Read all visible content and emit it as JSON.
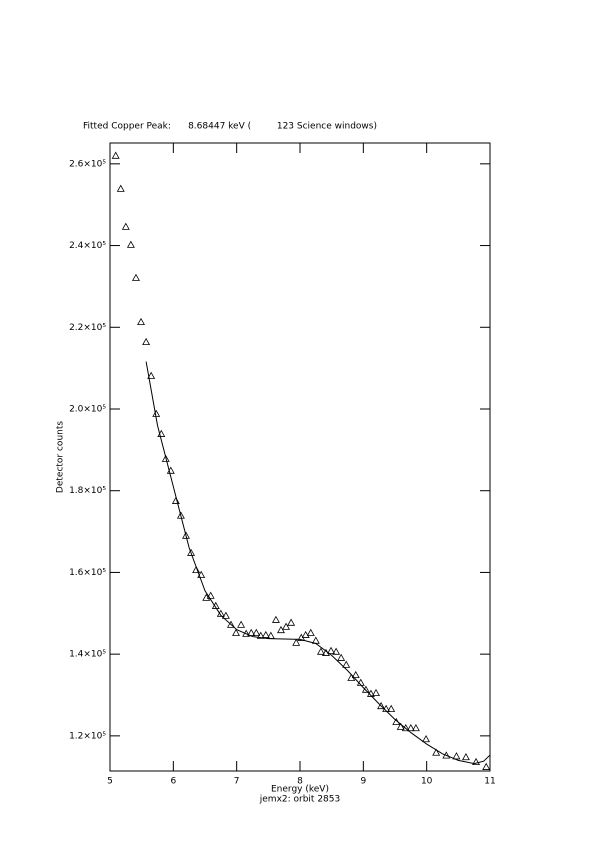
{
  "chart_data": {
    "type": "scatter",
    "title": "Fitted Copper Peak:      8.68447 keV (         123 Science windows)",
    "x_label": "Energy (keV)",
    "subtitle": "jemx2: orbit 2853",
    "y_label": "Detector counts",
    "xlim": [
      5,
      11
    ],
    "xticks": [
      5,
      6,
      7,
      8,
      9,
      10,
      11
    ],
    "ylim": [
      111400,
      265100
    ],
    "yticks": [
      {
        "value": 120000,
        "label": "1.2×10⁵"
      },
      {
        "value": 140000,
        "label": "1.4×10⁵"
      },
      {
        "value": 160000,
        "label": "1.6×10⁵"
      },
      {
        "value": 180000,
        "label": "1.8×10⁵"
      },
      {
        "value": 200000,
        "label": "2.0×10⁵"
      },
      {
        "value": 220000,
        "label": "2.2×10⁵"
      },
      {
        "value": 240000,
        "label": "2.4×10⁵"
      },
      {
        "value": 260000,
        "label": "2.6×10⁵"
      }
    ],
    "grid": false,
    "series": [
      {
        "type": "scatter",
        "marker": "triangle",
        "color": "#000000",
        "x": [
          5.09,
          5.17,
          5.25,
          5.33,
          5.41,
          5.49,
          5.57,
          5.65,
          5.73,
          5.81,
          5.88,
          5.96,
          6.04,
          6.12,
          6.2,
          6.28,
          6.36,
          6.44,
          6.52,
          6.59,
          6.67,
          6.75,
          6.83,
          6.91,
          6.99,
          7.07,
          7.15,
          7.23,
          7.31,
          7.38,
          7.46,
          7.54,
          7.62,
          7.7,
          7.78,
          7.86,
          7.94,
          8.02,
          8.09,
          8.17,
          8.25,
          8.33,
          8.41,
          8.49,
          8.57,
          8.65,
          8.73,
          8.81,
          8.88,
          8.96,
          9.04,
          9.12,
          9.2,
          9.28,
          9.36,
          9.44,
          9.52,
          9.59,
          9.67,
          9.75,
          9.83,
          9.99,
          10.15,
          10.31,
          10.47,
          10.62,
          10.78,
          10.94
        ],
        "values": [
          262000,
          253900,
          244600,
          240200,
          232100,
          221300,
          216400,
          208100,
          198800,
          193900,
          187800,
          184900,
          177500,
          173900,
          169000,
          164800,
          160600,
          159400,
          153800,
          154300,
          151800,
          149900,
          149400,
          147200,
          145200,
          147200,
          145000,
          145200,
          145200,
          144500,
          144700,
          144500,
          148400,
          145900,
          146700,
          147700,
          142800,
          144000,
          144700,
          145200,
          143300,
          140600,
          140300,
          140800,
          140600,
          139100,
          137400,
          134200,
          134900,
          133000,
          131300,
          130300,
          130500,
          127300,
          126600,
          126600,
          123400,
          122200,
          121900,
          121900,
          121900,
          119200,
          115900,
          115200,
          115000,
          114800,
          113600,
          112400
        ]
      },
      {
        "type": "line",
        "color": "#000000",
        "x": [
          5.57,
          5.75,
          6.0,
          6.25,
          6.5,
          6.75,
          7.0,
          7.25,
          7.5,
          7.75,
          8.0,
          8.25,
          8.5,
          8.75,
          9.0,
          9.25,
          9.5,
          9.75,
          10.0,
          10.25,
          10.5,
          10.75,
          10.9,
          11.0
        ],
        "values": [
          211600,
          196000,
          181000,
          166000,
          155500,
          149500,
          146000,
          144300,
          143800,
          143700,
          143600,
          142600,
          139700,
          136000,
          131800,
          127800,
          124000,
          120800,
          118000,
          115600,
          114000,
          113200,
          113800,
          115300
        ]
      }
    ]
  }
}
